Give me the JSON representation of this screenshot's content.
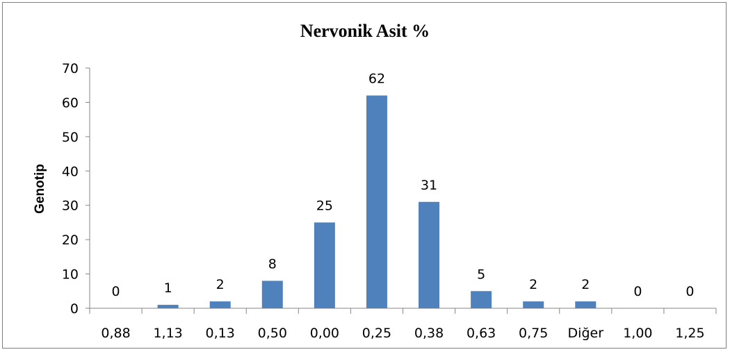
{
  "chart_data": {
    "type": "bar",
    "title": "Nervonik Asit %",
    "xlabel": "",
    "ylabel": "Genotip",
    "categories": [
      "0,88",
      "1,13",
      "0,13",
      "0,50",
      "0,00",
      "0,25",
      "0,38",
      "0,63",
      "0,75",
      "Diğer",
      "1,00",
      "1,25"
    ],
    "values": [
      0,
      1,
      2,
      8,
      25,
      62,
      31,
      5,
      2,
      2,
      0,
      0
    ],
    "ylim": [
      0,
      70
    ],
    "yticks": [
      0,
      10,
      20,
      30,
      40,
      50,
      60,
      70
    ],
    "data_labels": true,
    "grid": false,
    "legend": "none",
    "bar_color": "#4f81bd"
  }
}
